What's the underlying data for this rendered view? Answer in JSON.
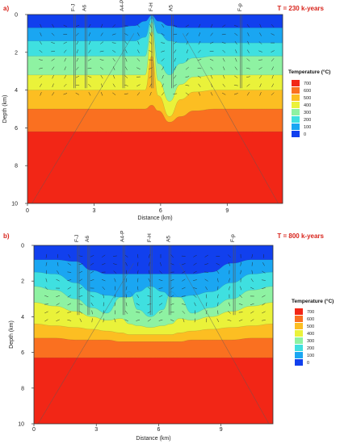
{
  "figure": {
    "panels": [
      {
        "letter": "a)",
        "time_label": "T = 230 k-years",
        "markers": [
          "F-J",
          "A6",
          "A4-P",
          "F-H",
          "A5",
          "F-p"
        ]
      },
      {
        "letter": "b)",
        "time_label": "T = 800 k-years",
        "markers": [
          "F-J",
          "A6",
          "A4-P",
          "F-H",
          "A5",
          "F-p"
        ]
      }
    ]
  },
  "colors": {
    "c0": "#1140ee",
    "c100": "#1aa6f2",
    "c200": "#3fe0e0",
    "c300": "#8ef2a2",
    "c400": "#eaf23a",
    "c500": "#fcbe22",
    "c600": "#fa7020",
    "c700": "#f22616"
  },
  "chart_data": [
    {
      "type": "heatmap",
      "title": "T = 230 k-years",
      "xlabel": "Distance (km)",
      "ylabel": "Depth (km)",
      "xlim": [
        0,
        11.5
      ],
      "ylim": [
        10,
        0
      ],
      "x_ticks": [
        "0",
        "3",
        "6",
        "9"
      ],
      "y_ticks": [
        "0",
        "2",
        "4",
        "6",
        "8",
        "10"
      ],
      "legend": {
        "title": "Temperature (°C)",
        "labels": [
          "700",
          "600",
          "500",
          "400",
          "300",
          "200",
          "100",
          "0"
        ],
        "placement": "right"
      },
      "grid": false,
      "markers": [
        {
          "name": "F-J",
          "x_km": 2.1
        },
        {
          "name": "A6",
          "x_km": 2.6
        },
        {
          "name": "A4-P",
          "x_km": 4.3
        },
        {
          "name": "F-H",
          "x_km": 5.6
        },
        {
          "name": "A5",
          "x_km": 6.5
        },
        {
          "name": "F-p",
          "x_km": 9.6
        }
      ],
      "isotherm_depths_km": {
        "x_km": [
          0,
          1,
          2,
          3,
          4,
          4.8,
          5.3,
          5.6,
          5.9,
          6.4,
          6.9,
          7.5,
          8.5,
          10,
          11.5
        ],
        "t100": [
          0.7,
          0.7,
          0.7,
          0.7,
          0.7,
          0.6,
          0.35,
          0.05,
          0.35,
          0.6,
          0.7,
          0.7,
          0.7,
          0.7,
          0.7
        ],
        "t200": [
          1.4,
          1.4,
          1.4,
          1.4,
          1.4,
          1.4,
          1.2,
          0.2,
          1.0,
          1.4,
          1.5,
          1.5,
          1.5,
          1.5,
          1.5
        ],
        "t300": [
          2.2,
          2.2,
          2.2,
          2.2,
          2.2,
          2.2,
          2.2,
          0.4,
          2.6,
          3.2,
          2.6,
          2.3,
          2.2,
          2.2,
          2.2
        ],
        "t400": [
          3.2,
          3.2,
          3.2,
          3.2,
          3.2,
          3.2,
          3.2,
          0.9,
          3.5,
          4.6,
          3.7,
          3.3,
          3.2,
          3.2,
          3.2
        ],
        "t500": [
          4.0,
          4.0,
          4.0,
          4.0,
          4.0,
          4.0,
          4.0,
          2.2,
          4.3,
          5.4,
          4.5,
          4.1,
          4.0,
          4.0,
          4.0
        ],
        "t600": [
          5.0,
          5.0,
          5.0,
          5.0,
          5.0,
          5.0,
          5.0,
          4.8,
          5.1,
          5.7,
          5.4,
          5.1,
          5.0,
          5.0,
          5.0
        ],
        "t700": [
          6.2,
          6.2,
          6.2,
          6.2,
          6.2,
          6.2,
          6.2,
          6.2,
          6.2,
          6.2,
          6.2,
          6.2,
          6.2,
          6.2,
          6.2
        ]
      }
    },
    {
      "type": "heatmap",
      "title": "T = 800 k-years",
      "xlabel": "Distance (km)",
      "ylabel": "Depth (km)",
      "xlim": [
        0,
        11.5
      ],
      "ylim": [
        10,
        0
      ],
      "x_ticks": [
        "0",
        "3",
        "6",
        "9"
      ],
      "y_ticks": [
        "0",
        "2",
        "4",
        "6",
        "8",
        "10"
      ],
      "legend": {
        "title": "Temperature (°C)",
        "labels": [
          "700",
          "600",
          "500",
          "400",
          "300",
          "200",
          "100",
          "0"
        ],
        "placement": "right"
      },
      "grid": false,
      "markers": [
        {
          "name": "F-J",
          "x_km": 2.1
        },
        {
          "name": "A6",
          "x_km": 2.6
        },
        {
          "name": "A4-P",
          "x_km": 4.3
        },
        {
          "name": "F-H",
          "x_km": 5.6
        },
        {
          "name": "A5",
          "x_km": 6.5
        },
        {
          "name": "F-p",
          "x_km": 9.6
        }
      ],
      "isotherm_depths_km": {
        "x_km": [
          0,
          1,
          2,
          2.8,
          3.5,
          4.2,
          4.6,
          5.0,
          5.6,
          6.2,
          6.6,
          7.0,
          7.6,
          8.5,
          9.5,
          10.5,
          11.5
        ],
        "t100": [
          0.8,
          0.8,
          0.9,
          1.4,
          1.6,
          1.6,
          1.6,
          1.6,
          1.6,
          1.6,
          1.6,
          1.6,
          1.6,
          1.5,
          1.0,
          0.8,
          0.8
        ],
        "t200": [
          1.5,
          1.6,
          2.1,
          2.6,
          2.8,
          2.9,
          2.9,
          2.6,
          2.3,
          2.6,
          2.9,
          2.9,
          2.8,
          2.6,
          2.1,
          1.6,
          1.5
        ],
        "t300": [
          2.3,
          2.5,
          3.0,
          3.5,
          3.8,
          2.9,
          2.6,
          3.6,
          4.0,
          3.6,
          2.6,
          2.9,
          3.8,
          3.5,
          3.0,
          2.5,
          2.3
        ],
        "t400": [
          3.2,
          3.4,
          3.7,
          4.0,
          4.2,
          4.1,
          4.4,
          4.5,
          4.6,
          4.5,
          4.4,
          4.1,
          4.2,
          4.0,
          3.7,
          3.4,
          3.2
        ],
        "t500": [
          4.4,
          4.5,
          4.6,
          4.7,
          4.8,
          4.9,
          5.0,
          5.0,
          5.0,
          5.0,
          5.0,
          4.9,
          4.8,
          4.7,
          4.6,
          4.5,
          4.4
        ],
        "t600": [
          5.2,
          5.2,
          5.3,
          5.3,
          5.3,
          5.4,
          5.4,
          5.4,
          5.4,
          5.4,
          5.4,
          5.4,
          5.3,
          5.3,
          5.3,
          5.2,
          5.2
        ],
        "t700": [
          6.3,
          6.3,
          6.3,
          6.3,
          6.3,
          6.3,
          6.3,
          6.3,
          6.3,
          6.3,
          6.3,
          6.3,
          6.3,
          6.3,
          6.3,
          6.3,
          6.3
        ]
      }
    }
  ]
}
